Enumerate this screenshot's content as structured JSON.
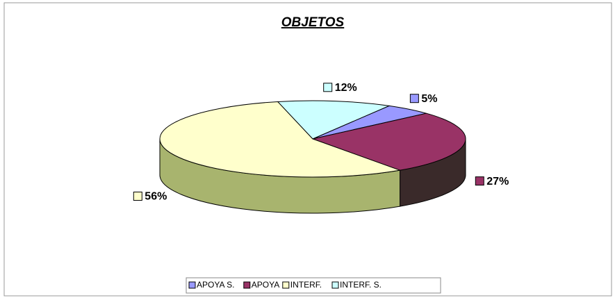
{
  "chart_data": {
    "type": "pie3d",
    "title": "OBJETOS",
    "categories": [
      "APOYA S.",
      "APOYA",
      "INTERF.",
      "INTERF. S."
    ],
    "values": [
      5,
      27,
      56,
      12
    ],
    "value_labels": [
      "5%",
      "27%",
      "56%",
      "12%"
    ],
    "colors": [
      "#9999ff",
      "#993366",
      "#ffffcc",
      "#ccffff"
    ],
    "side_colors": [
      "#6666bb",
      "#3a2a2a",
      "#a8b46e",
      "#88bbbb"
    ],
    "start_angle": 30,
    "legend": "bottom"
  }
}
